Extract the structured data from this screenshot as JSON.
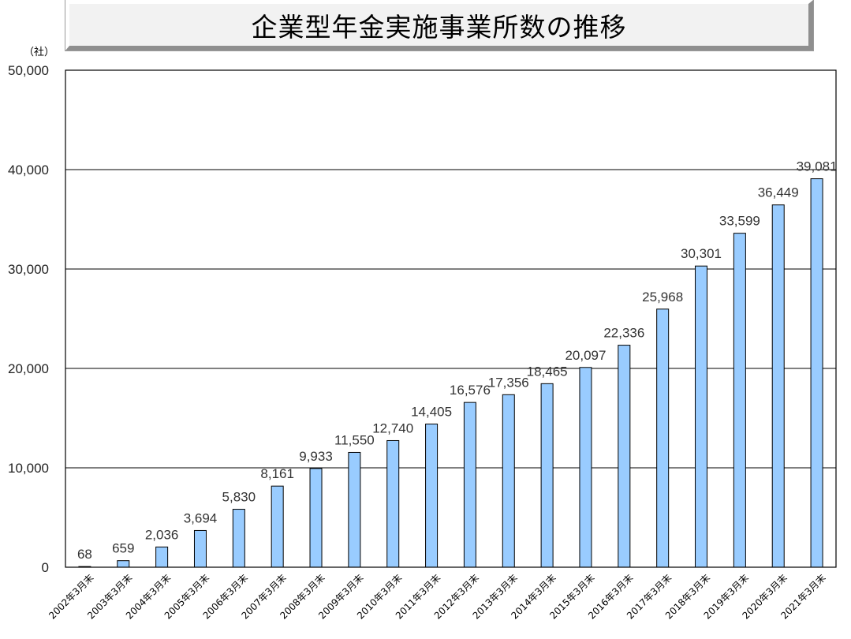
{
  "chart_data": {
    "type": "bar",
    "title": "企業型年金実施事業所数の推移",
    "unit": "（社）",
    "categories": [
      "2002年3月末",
      "2003年3月末",
      "2004年3月末",
      "2005年3月末",
      "2006年3月末",
      "2007年3月末",
      "2008年3月末",
      "2009年3月末",
      "2010年3月末",
      "2011年3月末",
      "2012年3月末",
      "2013年3月末",
      "2014年3月末",
      "2015年3月末",
      "2016年3月末",
      "2017年3月末",
      "2018年3月末",
      "2019年3月末",
      "2020年3月末",
      "2021年3月末"
    ],
    "values": [
      68,
      659,
      2036,
      3694,
      5830,
      8161,
      9933,
      11550,
      12740,
      14405,
      16576,
      17356,
      18465,
      20097,
      22336,
      25968,
      30301,
      33599,
      36449,
      39081
    ],
    "value_labels": [
      "68",
      "659",
      "2,036",
      "3,694",
      "5,830",
      "8,161",
      "9,933",
      "11,550",
      "12,740",
      "14,405",
      "16,576",
      "17,356",
      "18,465",
      "20,097",
      "22,336",
      "25,968",
      "30,301",
      "33,599",
      "36,449",
      "39,081"
    ],
    "yticks": [
      0,
      10000,
      20000,
      30000,
      40000,
      50000
    ],
    "ytick_labels": [
      "0",
      "10,000",
      "20,000",
      "30,000",
      "40,000",
      "50,000"
    ],
    "ylim": [
      0,
      50000
    ],
    "grid": true,
    "bar_color": "#99ccff",
    "xlabel": "",
    "ylabel": ""
  }
}
